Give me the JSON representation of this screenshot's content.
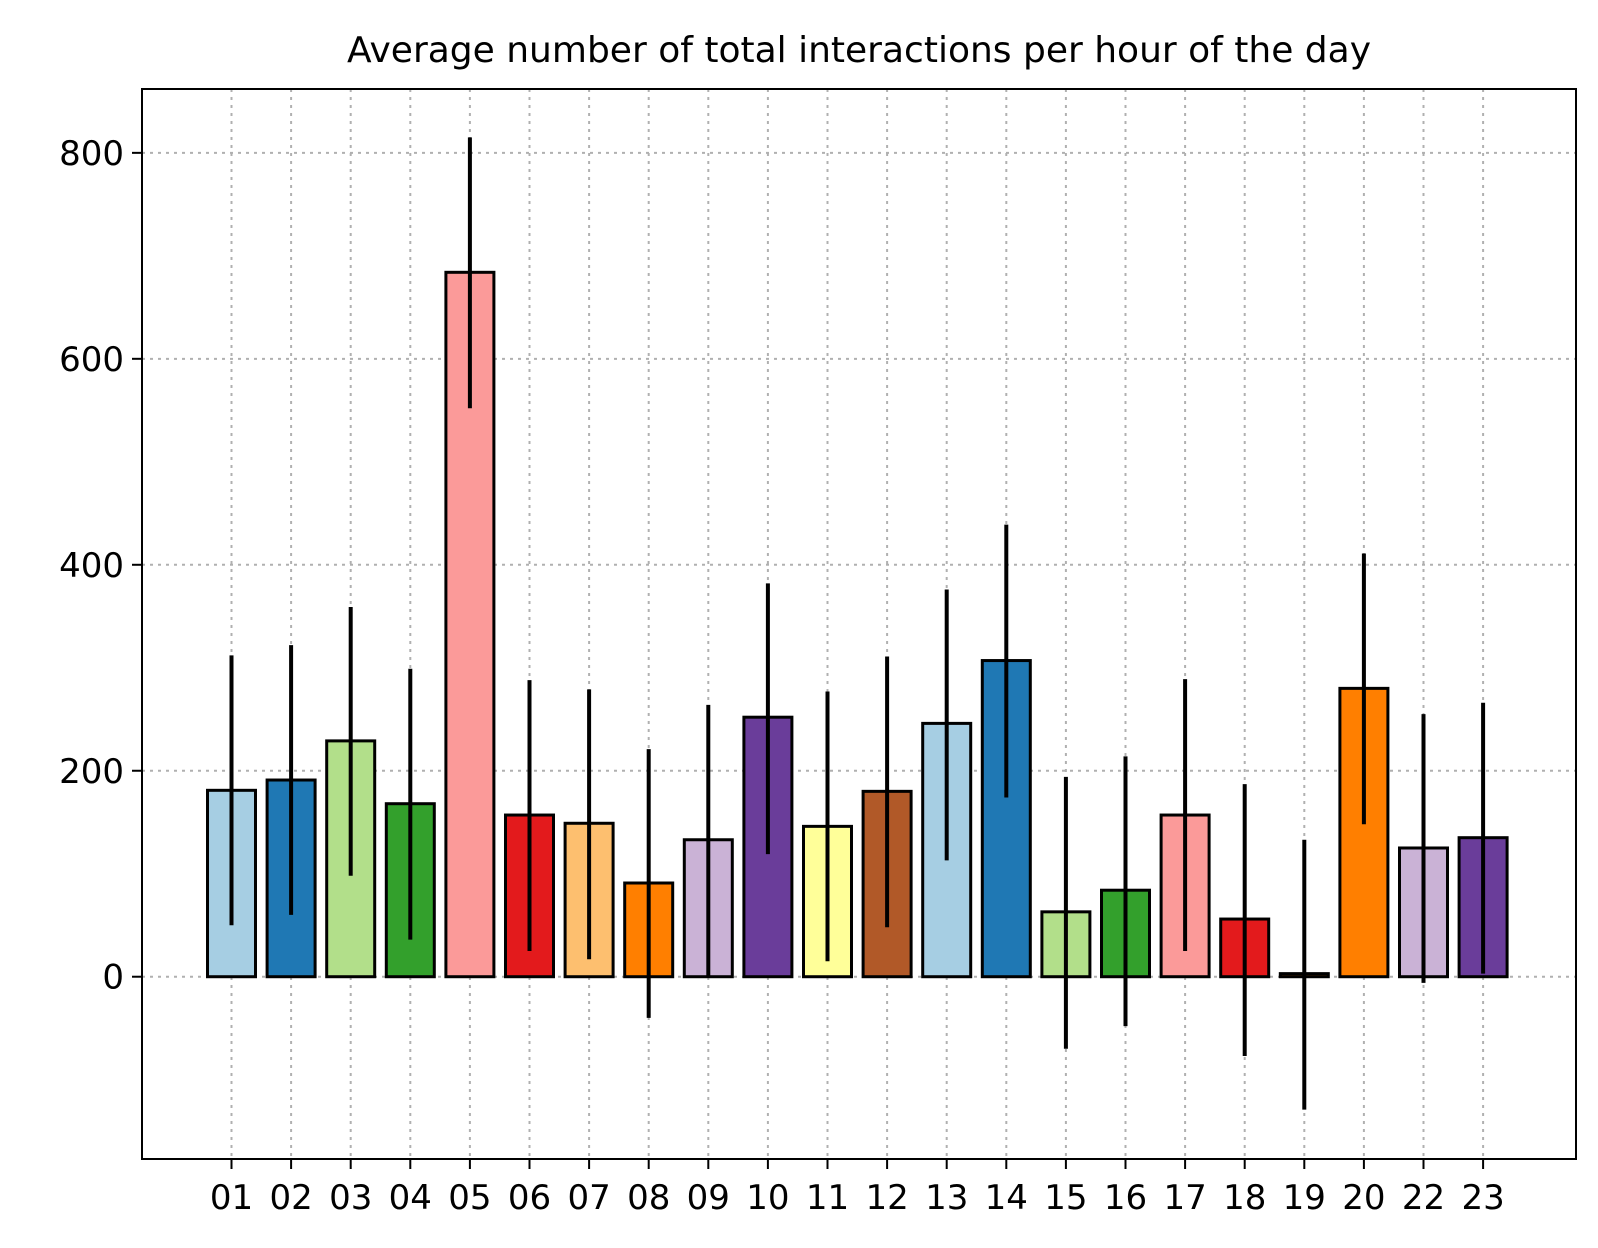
{
  "chart_data": {
    "type": "bar",
    "title": "Average number of total interactions per hour of the day",
    "xlabel": "",
    "ylabel": "",
    "categories": [
      "01",
      "02",
      "03",
      "04",
      "05",
      "06",
      "07",
      "08",
      "09",
      "10",
      "11",
      "12",
      "13",
      "14",
      "15",
      "16",
      "17",
      "18",
      "19",
      "20",
      "22",
      "23"
    ],
    "values": [
      181,
      191,
      229,
      168,
      684,
      157,
      149,
      91,
      133,
      252,
      146,
      180,
      246,
      307,
      63,
      84,
      157,
      56,
      3,
      280,
      125,
      135
    ],
    "error_low": [
      50,
      60,
      98,
      36,
      552,
      25,
      17,
      -40,
      1,
      119,
      15,
      48,
      113,
      174,
      -70,
      -48,
      25,
      -77,
      -129,
      148,
      -6,
      3
    ],
    "error_high": [
      312,
      322,
      359,
      299,
      815,
      288,
      279,
      221,
      264,
      382,
      277,
      311,
      376,
      439,
      194,
      214,
      289,
      187,
      133,
      411,
      255,
      266
    ],
    "bar_colors": [
      "#a6cee3",
      "#1f78b4",
      "#b2df8a",
      "#33a02c",
      "#fb9a99",
      "#e31a1c",
      "#fdbf6f",
      "#ff7f00",
      "#cab2d6",
      "#6a3d9a",
      "#ffff99",
      "#b15928",
      "#a6cee3",
      "#1f78b4",
      "#b2df8a",
      "#33a02c",
      "#fb9a99",
      "#e31a1c",
      "#ff7f00",
      "#ff7f00",
      "#cab2d6",
      "#6a3d9a"
    ],
    "ylim": [
      -177,
      862
    ],
    "yticks": [
      0,
      200,
      400,
      600,
      800
    ],
    "grid": true,
    "legend": "none"
  }
}
